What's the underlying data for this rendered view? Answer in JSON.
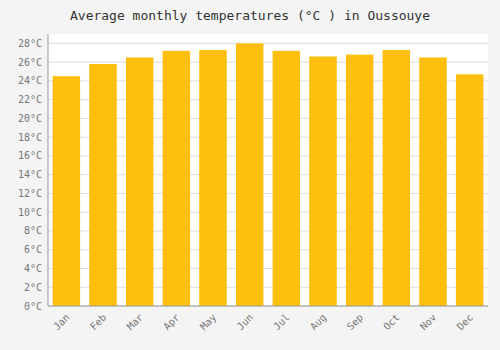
{
  "chart_data": {
    "type": "bar",
    "title": "Average monthly temperatures (°C ) in Oussouye",
    "categories": [
      "Jan",
      "Feb",
      "Mar",
      "Apr",
      "May",
      "Jun",
      "Jul",
      "Aug",
      "Sep",
      "Oct",
      "Nov",
      "Dec"
    ],
    "values": [
      24.5,
      25.8,
      26.5,
      27.2,
      27.3,
      28.0,
      27.2,
      26.6,
      26.8,
      27.3,
      26.5,
      24.7
    ],
    "color": "#FFBF0D",
    "ylim": [
      0,
      29
    ],
    "yticks": [
      {
        "value": 0,
        "label": "0°C"
      },
      {
        "value": 2,
        "label": "2°C"
      },
      {
        "value": 4,
        "label": "4°C"
      },
      {
        "value": 6,
        "label": "6°C"
      },
      {
        "value": 8,
        "label": "8°C"
      },
      {
        "value": 10,
        "label": "10°C"
      },
      {
        "value": 12,
        "label": "12°C"
      },
      {
        "value": 14,
        "label": "14°C"
      },
      {
        "value": 16,
        "label": "16°C"
      },
      {
        "value": 18,
        "label": "18°C"
      },
      {
        "value": 20,
        "label": "20°C"
      },
      {
        "value": 22,
        "label": "22°C"
      },
      {
        "value": 24,
        "label": "24°C"
      },
      {
        "value": 26,
        "label": "26°C"
      },
      {
        "value": 28,
        "label": "28°C"
      }
    ],
    "grid": true
  }
}
